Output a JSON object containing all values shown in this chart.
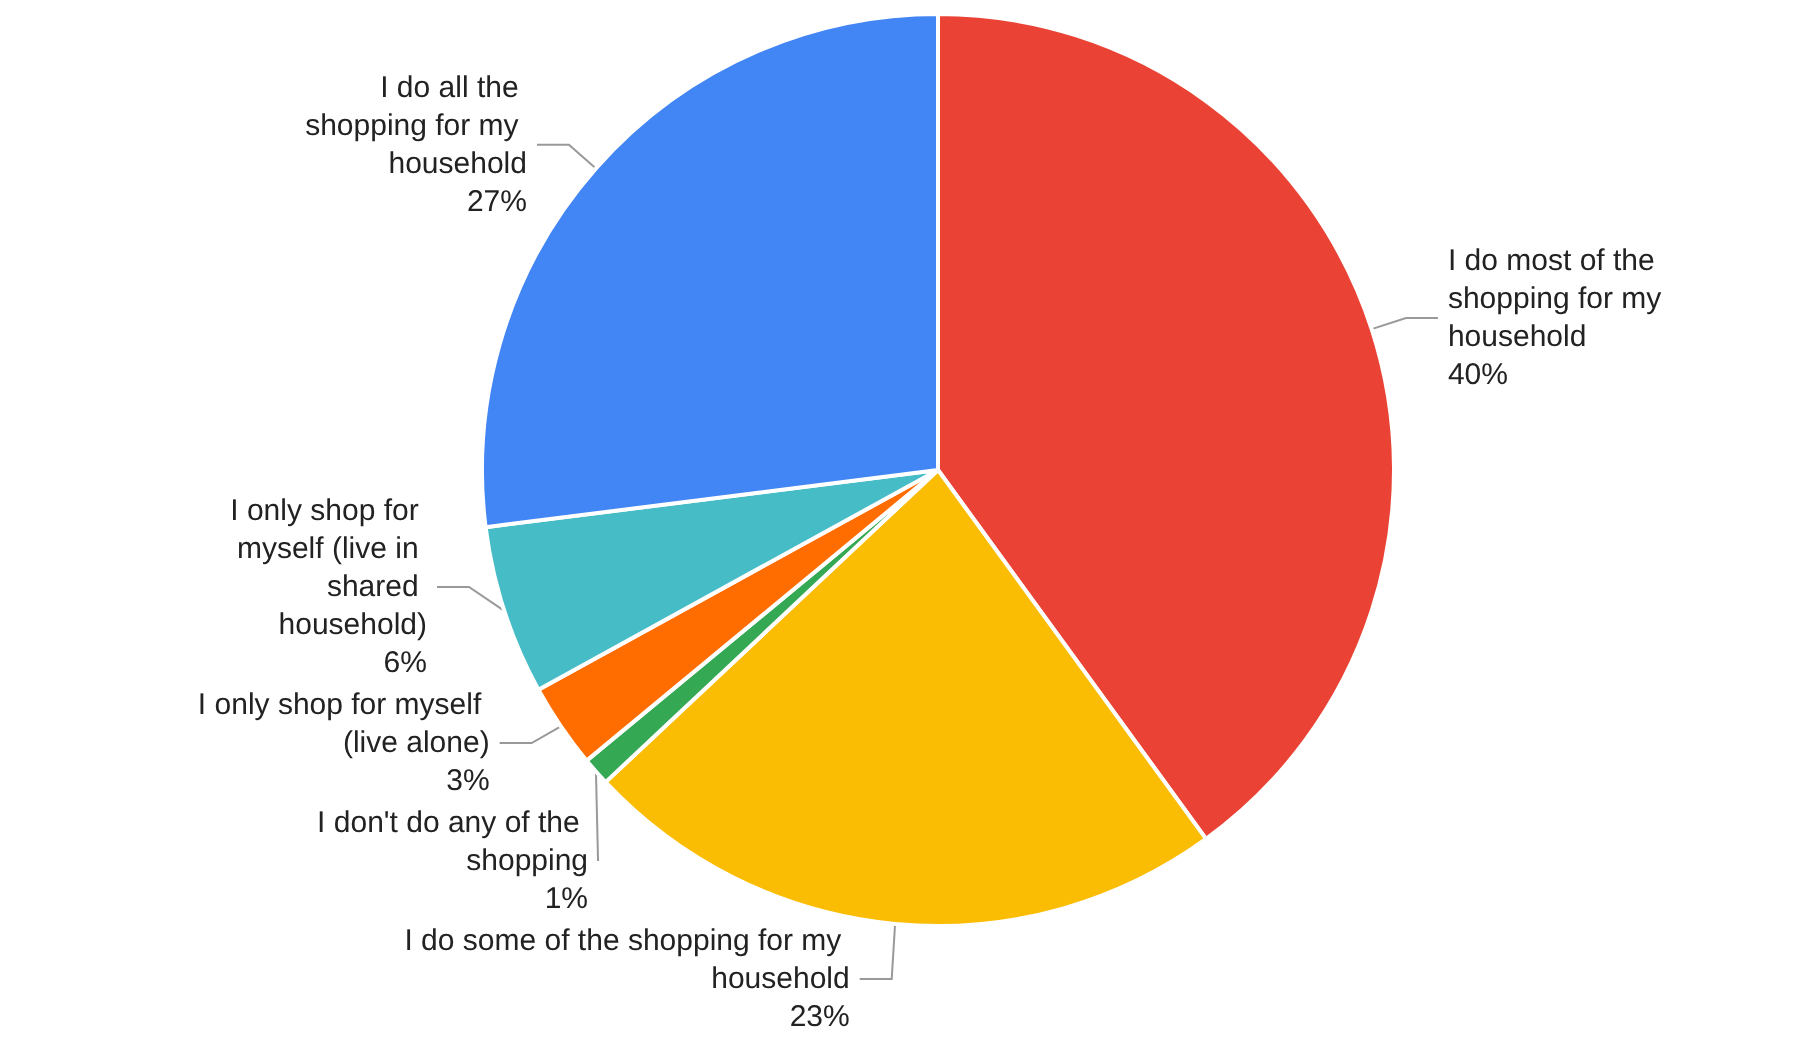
{
  "chart_data": {
    "type": "pie",
    "categories": [
      "I do most of the shopping for my household",
      "I do some of the shopping for my household",
      "I don't do any of the shopping",
      "I only shop for myself (live alone)",
      "I only shop for myself (live in shared household)",
      "I do all the shopping for my household"
    ],
    "values": [
      40,
      23,
      1,
      3,
      6,
      27
    ],
    "value_labels": [
      "40%",
      "23%",
      "1%",
      "3%",
      "6%",
      "27%"
    ],
    "colors": [
      "#ea4335",
      "#fbbc04",
      "#34a853",
      "#ff6d01",
      "#46bdc6",
      "#4285f4"
    ],
    "legend": false
  }
}
